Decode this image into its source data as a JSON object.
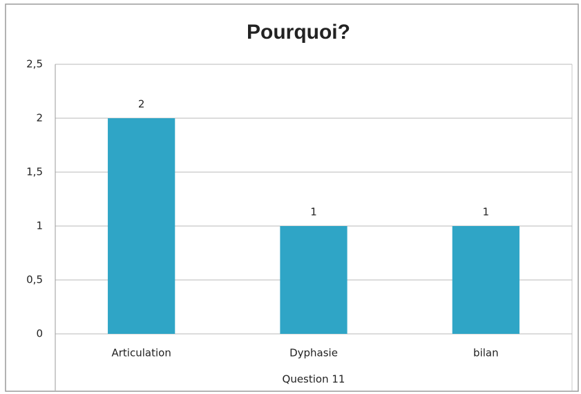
{
  "chart_data": {
    "type": "bar",
    "title": "Pourquoi?",
    "x_label": "Question 11",
    "categories": [
      "Articulation",
      "Dyphasie",
      "bilan"
    ],
    "values": [
      2,
      1,
      1
    ],
    "color": "#2fa5c6",
    "ylim": [
      0,
      2.5
    ],
    "yticks": [
      0,
      {
        "value": 0.5,
        "label": "0,5"
      },
      1,
      {
        "value": 1.5,
        "label": "1,5"
      },
      2,
      {
        "value": 2.5,
        "label": "2,5"
      }
    ],
    "grid": true
  }
}
